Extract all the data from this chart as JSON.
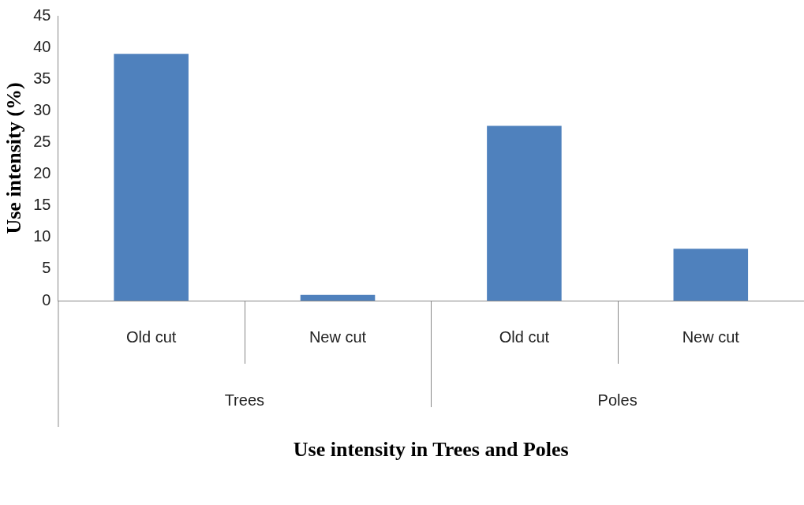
{
  "chart_data": {
    "type": "bar",
    "xlabel": "Use intensity in Trees and Poles",
    "ylabel": "Use intensity (%)",
    "categories": [
      "Old cut",
      "New cut",
      "Old cut",
      "New cut"
    ],
    "values": [
      39,
      0.9,
      27.6,
      8.2
    ],
    "color": "#4f81bd",
    "ylim": [
      0,
      45
    ],
    "yticks": [
      0,
      5,
      10,
      15,
      20,
      25,
      30,
      35,
      40,
      45
    ],
    "grid": false,
    "legend": false,
    "annotations": [
      "Trees",
      "Poles"
    ]
  }
}
